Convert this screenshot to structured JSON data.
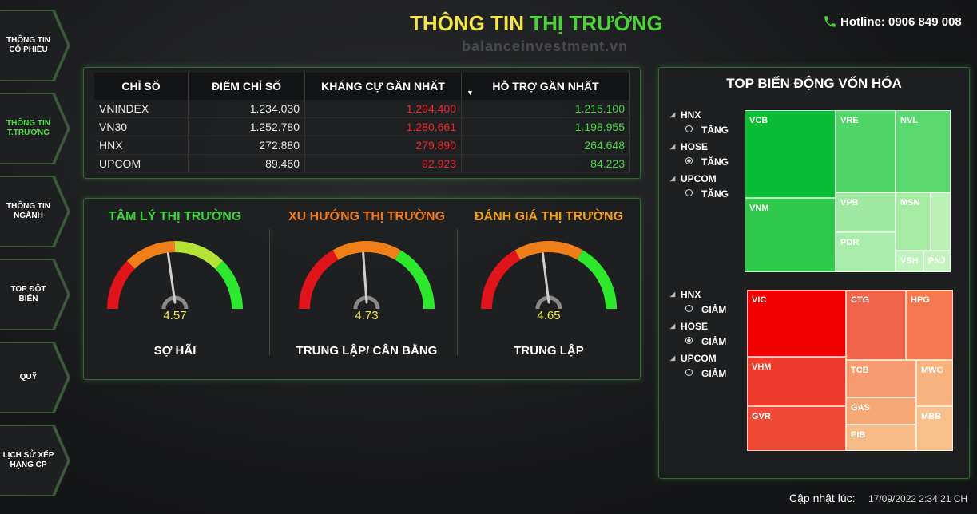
{
  "header": {
    "title_part1": "THÔNG TIN",
    "title_part2": "THỊ TRƯỜNG",
    "watermark": "balanceinvestment.vn",
    "hotline": "Hotline: 0906 849 008"
  },
  "sidebar": {
    "items": [
      [
        "THÔNG TIN",
        "CỔ PHIẾU"
      ],
      [
        "THÔNG TIN",
        "T.TRƯỜNG"
      ],
      [
        "THÔNG TIN",
        "NGÀNH"
      ],
      [
        "TOP ĐỘT",
        "BIẾN"
      ],
      [
        "QUỸ"
      ],
      [
        "LỊCH SỬ XẾP",
        "HẠNG CP"
      ]
    ]
  },
  "table": {
    "columns": [
      "CHỈ SỐ",
      "ĐIỂM CHỈ SỐ",
      "KHÁNG CỰ GẦN NHẤT",
      "HỖ TRỢ GẦN NHẤT"
    ],
    "rows": [
      [
        "VNINDEX",
        "1.234.030",
        "1.294.400",
        "1.215.100"
      ],
      [
        "VN30",
        "1.252.780",
        "1.280.661",
        "1.198.955"
      ],
      [
        "HNX",
        "272.880",
        "279.890",
        "264.648"
      ],
      [
        "UPCOM",
        "89.460",
        "92.923",
        "84.223"
      ]
    ]
  },
  "gauges": [
    {
      "title": "TÂM LÝ THỊ TRƯỜNG",
      "value": 4.57,
      "label": "SỢ HÃI"
    },
    {
      "title": "XU HƯỚNG THỊ TRƯỜNG",
      "value": 4.73,
      "label": "TRUNG LẬP/ CÂN BẰNG"
    },
    {
      "title": "ĐÁNH GIÁ THỊ TRƯỜNG",
      "value": 4.65,
      "label": "TRUNG LẬP"
    }
  ],
  "top_movers": {
    "title": "TOP BIẾN ĐỘNG VỐN HÓA",
    "gainers": {
      "filters": [
        {
          "exchange": "HNX",
          "option": "TĂNG"
        },
        {
          "exchange": "HOSE",
          "option": "TĂNG"
        },
        {
          "exchange": "UPCOM",
          "option": "TĂNG"
        }
      ],
      "tiles": [
        "VCB",
        "VNM",
        "VRE",
        "NVL",
        "VPB",
        "PDR",
        "MSN",
        "VSH",
        "PNJ"
      ]
    },
    "losers": {
      "filters": [
        {
          "exchange": "HNX",
          "option": "GIẢM"
        },
        {
          "exchange": "HOSE",
          "option": "GIẢM"
        },
        {
          "exchange": "UPCOM",
          "option": "GIẢM"
        }
      ],
      "tiles": [
        "VIC",
        "VHM",
        "GVR",
        "CTG",
        "HPG",
        "TCB",
        "MWG",
        "GAS",
        "EIB",
        "MBB"
      ]
    }
  },
  "footer": {
    "label": "Cập nhật lúc:",
    "timestamp": "17/09/2022 2:34:21 CH"
  }
}
